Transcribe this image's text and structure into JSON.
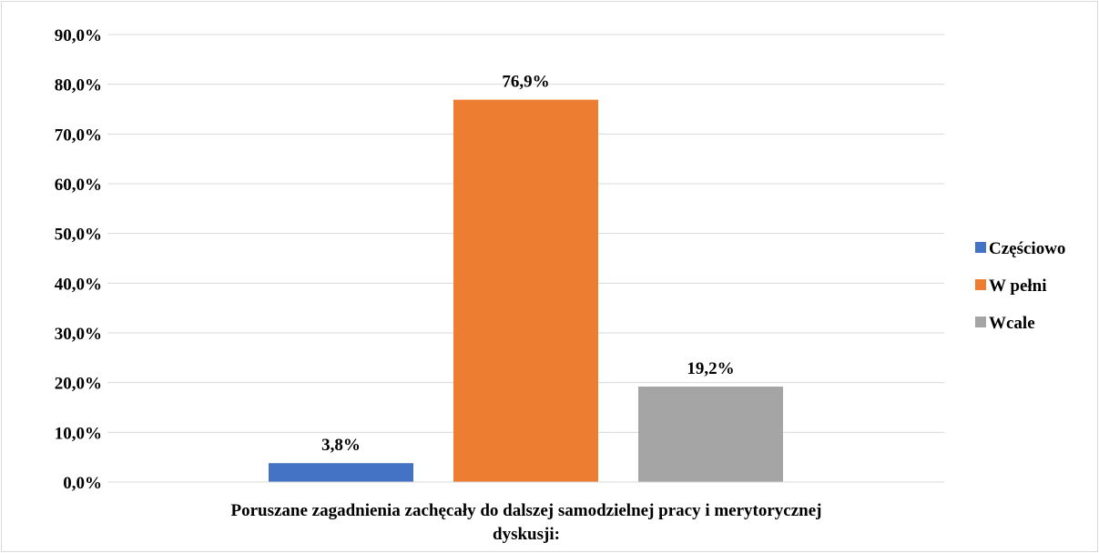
{
  "chart_data": {
    "type": "bar",
    "category": "Poruszane zagadnienia zachęcały do dalszej samodzielnej pracy i merytorycznej dyskusji:",
    "category_lines": [
      "Poruszane zagadnienia zachęcały do dalszej samodzielnej pracy i merytorycznej",
      "dyskusji:"
    ],
    "series": [
      {
        "name": "Częściowo",
        "value": 3.8,
        "label": "3,8%",
        "color": "#4472c4"
      },
      {
        "name": "W pełni",
        "value": 76.9,
        "label": "76,9%",
        "color": "#ed7d31"
      },
      {
        "name": "Wcale",
        "value": 19.2,
        "label": "19,2%",
        "color": "#a5a5a5"
      }
    ],
    "ylim": [
      0,
      90
    ],
    "yticks": [
      "0,0%",
      "10,0%",
      "20,0%",
      "30,0%",
      "40,0%",
      "50,0%",
      "60,0%",
      "70,0%",
      "80,0%",
      "90,0%"
    ],
    "grid": true,
    "legend_position": "right"
  }
}
